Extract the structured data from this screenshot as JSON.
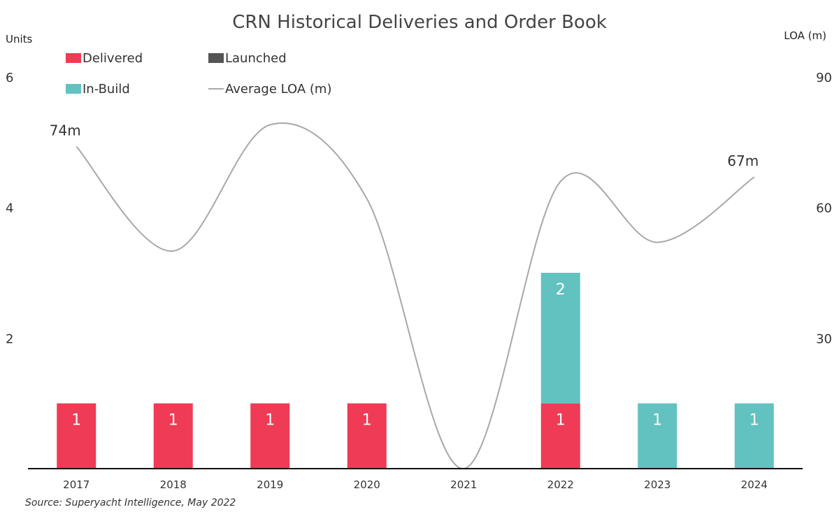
{
  "chart_data": {
    "type": "bar",
    "title": "CRN Historical Deliveries and Order Book",
    "ylabel_left": "Units",
    "ylabel_right": "LOA (m)",
    "categories": [
      "2017",
      "2018",
      "2019",
      "2020",
      "2021",
      "2022",
      "2023",
      "2024"
    ],
    "series": [
      {
        "name": "Delivered",
        "kind": "bar",
        "color": "#EF3B55",
        "values": [
          1,
          1,
          1,
          1,
          0,
          1,
          0,
          0
        ]
      },
      {
        "name": "Launched",
        "kind": "bar",
        "color": "#555555",
        "values": [
          0,
          0,
          0,
          0,
          0,
          0,
          0,
          0
        ]
      },
      {
        "name": "In-Build",
        "kind": "bar",
        "color": "#62C2C0",
        "values": [
          0,
          0,
          0,
          0,
          0,
          2,
          1,
          1
        ]
      },
      {
        "name": "Average LOA (m)",
        "kind": "line",
        "axis": "right",
        "color": "#A8A8A8",
        "values": [
          74,
          50,
          79,
          62,
          0,
          66,
          52,
          67
        ]
      }
    ],
    "ylim_left": [
      0,
      6
    ],
    "yticks_left": [
      "2",
      "4",
      "6"
    ],
    "ylim_right": [
      0,
      90
    ],
    "yticks_right": [
      "30",
      "60",
      "90"
    ],
    "line_annotations": [
      {
        "index": 0,
        "text": "74m"
      },
      {
        "index": 7,
        "text": "67m"
      }
    ],
    "legend_position": "top-left",
    "grid": false,
    "source": "Source: Superyacht Intelligence, May 2022"
  }
}
